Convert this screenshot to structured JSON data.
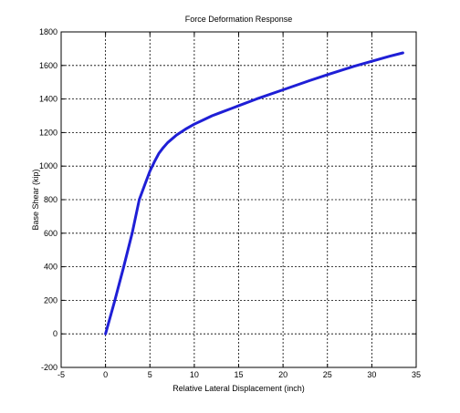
{
  "chart_data": {
    "type": "line",
    "title": "Force Deformation Response",
    "xlabel": "Relative Lateral Displacement (inch)",
    "ylabel": "Base Shear (kip)",
    "xlim": [
      -5,
      35
    ],
    "ylim": [
      -200,
      1800
    ],
    "xticks": [
      -5,
      0,
      5,
      10,
      15,
      20,
      25,
      30,
      35
    ],
    "yticks": [
      -200,
      0,
      200,
      400,
      600,
      800,
      1000,
      1200,
      1400,
      1600,
      1800
    ],
    "grid": true,
    "series": [
      {
        "color": "#1f1fd6",
        "x": [
          0,
          1,
          2,
          3,
          3.8,
          4.5,
          5,
          5.5,
          6,
          6.5,
          7,
          8,
          9,
          10,
          11,
          12,
          13,
          15,
          17,
          20,
          23,
          25,
          28,
          30,
          32,
          33.5
        ],
        "y": [
          0,
          190,
          390,
          600,
          800,
          900,
          970,
          1025,
          1075,
          1110,
          1140,
          1185,
          1220,
          1250,
          1275,
          1300,
          1320,
          1360,
          1400,
          1455,
          1510,
          1545,
          1595,
          1625,
          1655,
          1675
        ]
      }
    ]
  }
}
